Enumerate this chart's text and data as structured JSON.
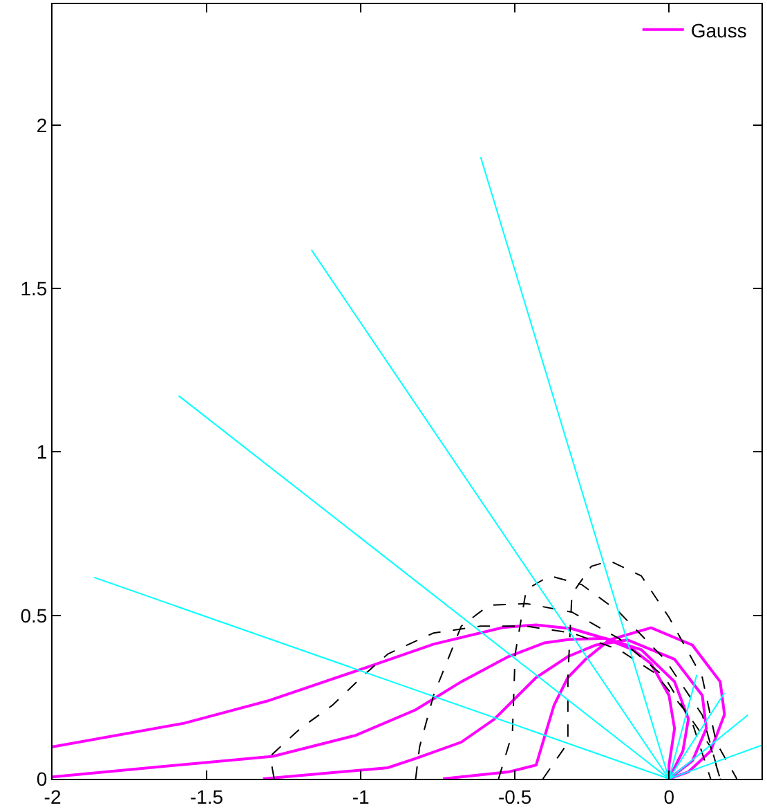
{
  "chart_data": {
    "type": "line",
    "xlim": [
      -2,
      0.3
    ],
    "ylim": [
      0,
      2.37
    ],
    "xticks": [
      -2,
      -1.5,
      -1,
      -0.5,
      0
    ],
    "yticks": [
      0,
      0.5,
      1,
      1.5,
      2
    ],
    "legend": "top right",
    "marker": "none",
    "series": [
      {
        "name": "Gauss",
        "color": "#ff00ff",
        "line_style": "solid",
        "x": [
          -2,
          -1.573,
          -1.303,
          -0.971,
          -0.764,
          -0.539,
          -0.431,
          -0.315,
          -0.207,
          -0.117,
          -0.058,
          0,
          0.018,
          0,
          0
        ],
        "values": [
          0.098,
          0.17,
          0.238,
          0.344,
          0.412,
          0.463,
          0.471,
          0.459,
          0.429,
          0.395,
          0.352,
          0.255,
          0.154,
          0.042,
          0
        ]
      },
      {
        "color": "#ff00ff",
        "line_style": "solid",
        "x": [
          -2,
          -1.285,
          -1.016,
          -0.822,
          -0.674,
          -0.521,
          -0.404,
          -0.328,
          -0.207,
          -0.09,
          0.018,
          0.063,
          0.045,
          0
        ],
        "values": [
          0.006,
          0.069,
          0.133,
          0.211,
          0.297,
          0.374,
          0.416,
          0.426,
          0.43,
          0.395,
          0.297,
          0.183,
          0.085,
          0
        ]
      },
      {
        "color": "#ff00ff",
        "line_style": "solid",
        "x": [
          -1.317,
          -0.912,
          -0.822,
          -0.674,
          -0.566,
          -0.431,
          -0.328,
          -0.238,
          -0.135,
          0.018,
          0.108,
          0.121,
          0.076,
          0
        ],
        "values": [
          0,
          0.034,
          0.062,
          0.112,
          0.183,
          0.31,
          0.374,
          0.409,
          0.425,
          0.366,
          0.255,
          0.154,
          0.055,
          0
        ]
      },
      {
        "color": "#ff00ff",
        "line_style": "solid",
        "x": [
          -0.733,
          -0.521,
          -0.431,
          -0.409,
          -0.373,
          -0.328,
          -0.27,
          -0.193,
          -0.058,
          0.076,
          0.166,
          0.18,
          0.135,
          0.063,
          0
        ],
        "values": [
          0,
          0.021,
          0.042,
          0.112,
          0.225,
          0.31,
          0.366,
          0.425,
          0.462,
          0.409,
          0.297,
          0.197,
          0.085,
          0.021,
          0
        ]
      },
      {
        "color": "#000000",
        "line_style": "dashed",
        "x": [
          -1.281,
          -1.294,
          -1.196,
          -1.092,
          -0.989,
          -0.912,
          -0.764,
          -0.611,
          -0.463,
          -0.315,
          -0.162,
          -0.045,
          0.063,
          0.135,
          0.166
        ],
        "values": [
          0,
          0.069,
          0.154,
          0.225,
          0.318,
          0.382,
          0.446,
          0.467,
          0.467,
          0.446,
          0.395,
          0.323,
          0.195,
          0.098,
          0
        ]
      },
      {
        "color": "#000000",
        "line_style": "dashed",
        "x": [
          -0.822,
          -0.809,
          -0.764,
          -0.674,
          -0.584,
          -0.463,
          -0.315,
          -0.162,
          -0.013,
          0.076,
          0.135
        ],
        "values": [
          0,
          0.098,
          0.255,
          0.467,
          0.531,
          0.536,
          0.51,
          0.429,
          0.31,
          0.17,
          0
        ]
      },
      {
        "color": "#000000",
        "line_style": "dashed",
        "x": [
          -0.553,
          -0.508,
          -0.499,
          -0.463,
          -0.387,
          -0.283,
          -0.162,
          -0.013,
          0.108,
          0.166
        ],
        "values": [
          0,
          0.14,
          0.382,
          0.579,
          0.621,
          0.594,
          0.51,
          0.365,
          0.195,
          0
        ]
      },
      {
        "color": "#000000",
        "line_style": "dashed",
        "x": [
          -0.409,
          -0.328,
          -0.328,
          -0.315,
          -0.252,
          -0.193,
          -0.09,
          0,
          0.108,
          0.153,
          0.22
        ],
        "values": [
          0,
          0.11,
          0.31,
          0.565,
          0.65,
          0.667,
          0.621,
          0.494,
          0.31,
          0.112,
          0
        ]
      },
      {
        "color": "#00ffff",
        "line_style": "solid",
        "x": [
          0,
          -1.865
        ],
        "values": [
          0,
          0.616
        ]
      },
      {
        "color": "#00ffff",
        "line_style": "solid",
        "x": [
          0,
          -1.591
        ],
        "values": [
          0,
          1.172
        ]
      },
      {
        "color": "#00ffff",
        "line_style": "solid",
        "x": [
          0,
          -1.16
        ],
        "values": [
          0,
          1.618
        ]
      },
      {
        "color": "#00ffff",
        "line_style": "solid",
        "x": [
          0,
          -0.611
        ],
        "values": [
          0,
          1.902
        ]
      },
      {
        "color": "#00ffff",
        "line_style": "solid",
        "x": [
          0,
          0.3
        ],
        "values": [
          0,
          0.102
        ]
      },
      {
        "color": "#00ffff",
        "line_style": "solid",
        "x": [
          0,
          0.256
        ],
        "values": [
          0,
          0.195
        ]
      },
      {
        "color": "#00ffff",
        "line_style": "solid",
        "x": [
          0,
          0.18
        ],
        "values": [
          0,
          0.263
        ]
      },
      {
        "color": "#00ffff",
        "line_style": "solid",
        "x": [
          0,
          0.09
        ],
        "values": [
          0,
          0.318
        ]
      }
    ]
  }
}
